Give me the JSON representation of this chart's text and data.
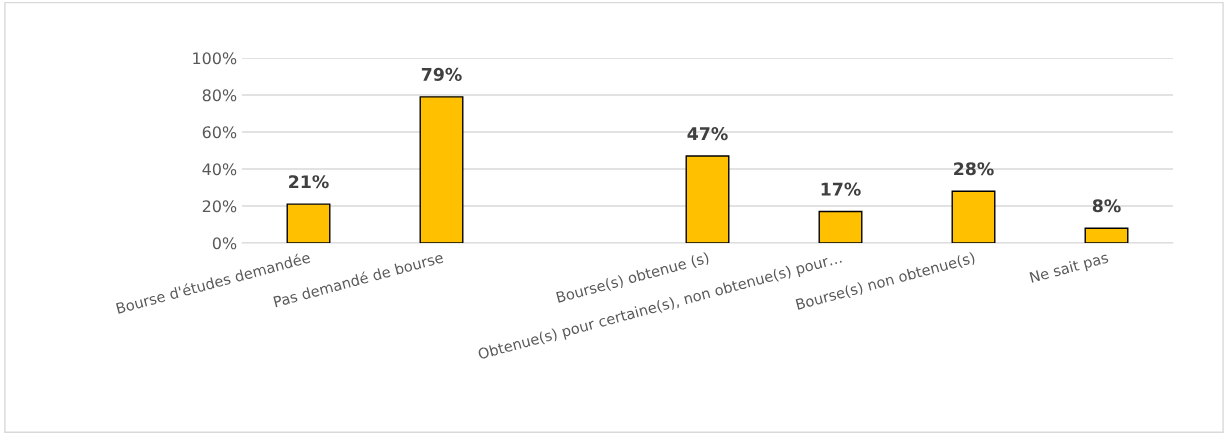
{
  "chart_data": {
    "type": "bar",
    "categories": [
      "Bourse d'études demandée",
      "Pas demandé de bourse",
      null,
      "Bourse(s) obtenue (s)",
      "Obtenue(s) pour certaine(s), non obtenue(s) pour…",
      "Bourse(s) non obtenue(s)",
      "Ne sait pas"
    ],
    "values": [
      21,
      79,
      null,
      47,
      17,
      28,
      8
    ],
    "value_labels": [
      "21%",
      "79%",
      null,
      "47%",
      "17%",
      "28%",
      "8%"
    ],
    "color": "#ffc000",
    "ylim": [
      0,
      100
    ],
    "yticks": [
      {
        "value": 0,
        "label": "0%"
      },
      {
        "value": 20,
        "label": "20%"
      },
      {
        "value": 40,
        "label": "40%"
      },
      {
        "value": 60,
        "label": "60%"
      },
      {
        "value": 80,
        "label": "80%"
      },
      {
        "value": 100,
        "label": "100%"
      }
    ],
    "grid": "y"
  }
}
